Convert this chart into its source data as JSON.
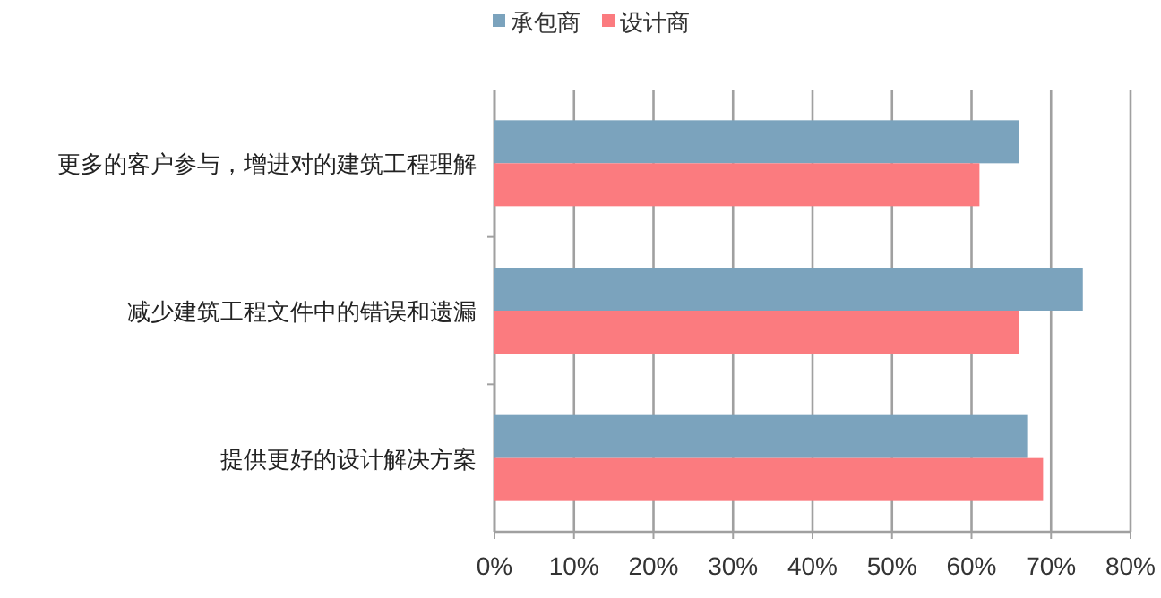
{
  "chart_data": {
    "type": "bar",
    "orientation": "horizontal",
    "categories": [
      "更多的客户参与，增进对的建筑工程理解",
      "减少建筑工程文件中的错误和遗漏",
      "提供更好的设计解决方案"
    ],
    "series": [
      {
        "name": "承包商",
        "color": "#7ba3bd",
        "values": [
          66,
          74,
          67
        ]
      },
      {
        "name": "设计商",
        "color": "#fb7b7f",
        "values": [
          61,
          66,
          69
        ]
      }
    ],
    "xlim": [
      0,
      80
    ],
    "xticks": [
      {
        "value": 0,
        "label": "0%"
      },
      {
        "value": 10,
        "label": "10%"
      },
      {
        "value": 20,
        "label": "20%"
      },
      {
        "value": 30,
        "label": "30%"
      },
      {
        "value": 40,
        "label": "40%"
      },
      {
        "value": 50,
        "label": "50%"
      },
      {
        "value": 60,
        "label": "60%"
      },
      {
        "value": 70,
        "label": "70%"
      },
      {
        "value": 80,
        "label": "80%"
      }
    ],
    "grid": "x",
    "legend": "top"
  }
}
